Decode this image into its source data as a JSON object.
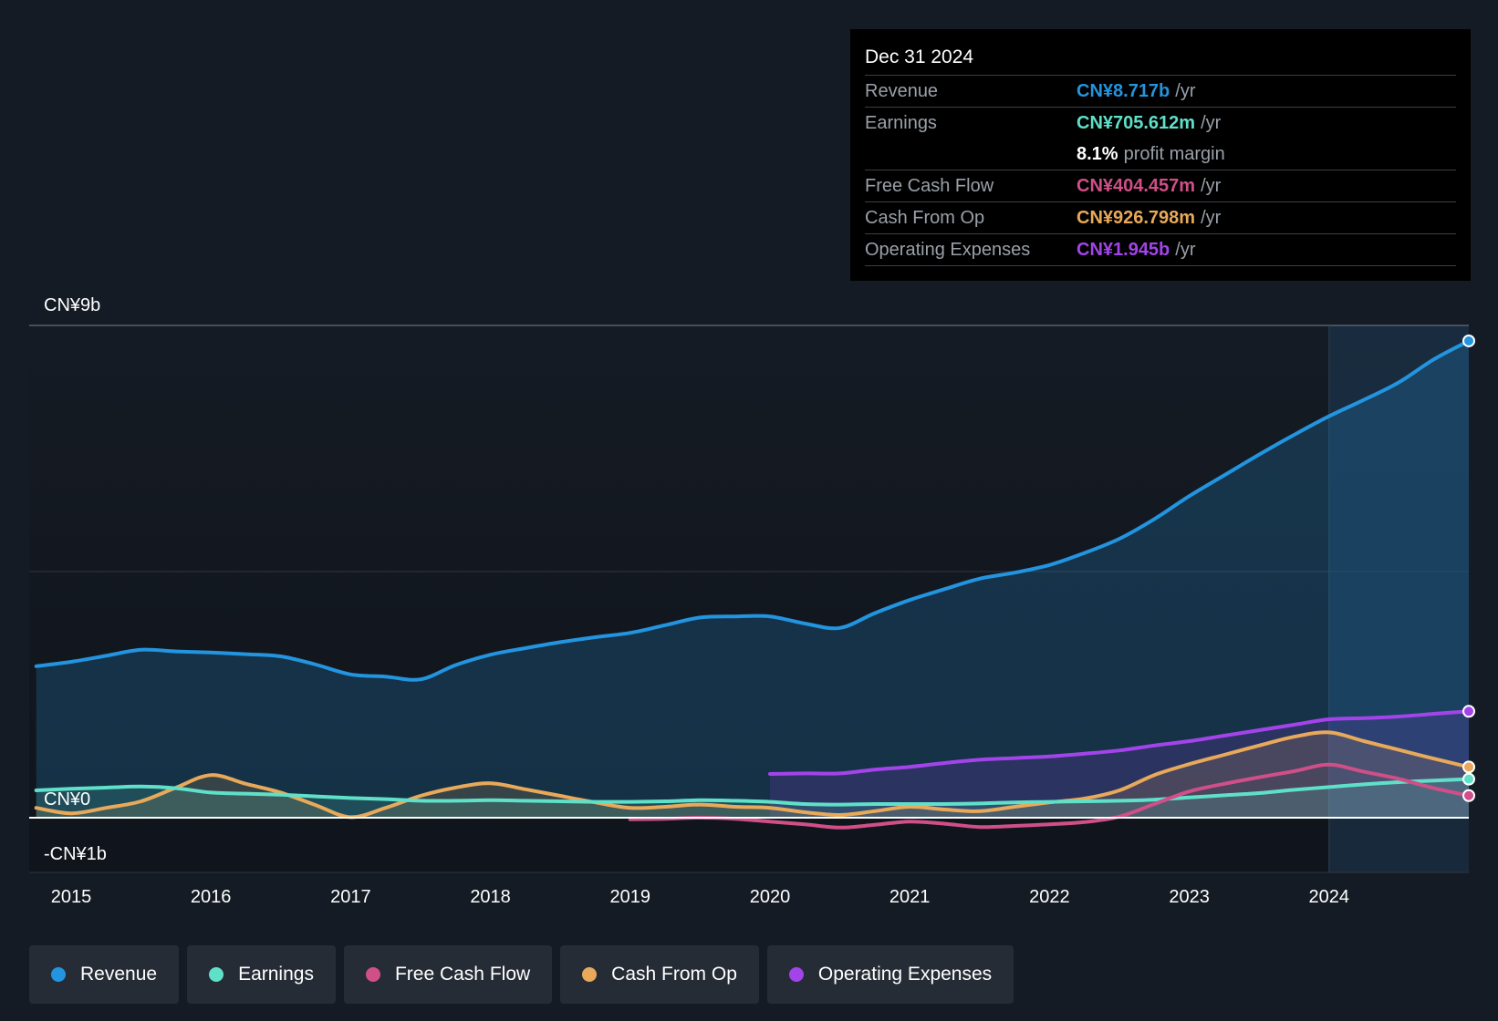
{
  "chart_data": {
    "type": "line",
    "currency_prefix": "CN¥",
    "y_labels": [
      {
        "value": 9,
        "label": "CN¥9b"
      },
      {
        "value": 0,
        "label": "CN¥0"
      },
      {
        "value": -1,
        "label": "-CN¥1b"
      }
    ],
    "ylim": [
      -1,
      9
    ],
    "xlim": [
      2014.7,
      2025.0
    ],
    "x_ticks": [
      {
        "value": 2015,
        "label": "2015"
      },
      {
        "value": 2016,
        "label": "2016"
      },
      {
        "value": 2017,
        "label": "2017"
      },
      {
        "value": 2018,
        "label": "2018"
      },
      {
        "value": 2019,
        "label": "2019"
      },
      {
        "value": 2020,
        "label": "2020"
      },
      {
        "value": 2021,
        "label": "2021"
      },
      {
        "value": 2022,
        "label": "2022"
      },
      {
        "value": 2023,
        "label": "2023"
      },
      {
        "value": 2024,
        "label": "2024"
      }
    ],
    "highlight_start": 2024.0,
    "series": [
      {
        "name": "Revenue",
        "color": "#2394df",
        "fill": true,
        "x": [
          2014.75,
          2015.0,
          2015.25,
          2015.5,
          2015.75,
          2016.0,
          2016.25,
          2016.5,
          2016.75,
          2017.0,
          2017.25,
          2017.5,
          2017.75,
          2018.0,
          2018.25,
          2018.5,
          2018.75,
          2019.0,
          2019.25,
          2019.5,
          2019.75,
          2020.0,
          2020.25,
          2020.5,
          2020.75,
          2021.0,
          2021.25,
          2021.5,
          2021.75,
          2022.0,
          2022.25,
          2022.5,
          2022.75,
          2023.0,
          2023.25,
          2023.5,
          2023.75,
          2024.0,
          2024.25,
          2024.5,
          2024.75,
          2025.0
        ],
        "values": [
          2.77,
          2.85,
          2.96,
          3.07,
          3.04,
          3.02,
          2.99,
          2.95,
          2.8,
          2.62,
          2.58,
          2.53,
          2.79,
          2.98,
          3.1,
          3.21,
          3.3,
          3.38,
          3.52,
          3.66,
          3.68,
          3.68,
          3.55,
          3.47,
          3.74,
          3.98,
          4.18,
          4.37,
          4.48,
          4.62,
          4.84,
          5.1,
          5.46,
          5.88,
          6.26,
          6.64,
          7.0,
          7.34,
          7.64,
          7.96,
          8.38,
          8.717
        ]
      },
      {
        "name": "Operating Expenses",
        "color": "#a344ea",
        "fill": true,
        "x": [
          2020.0,
          2020.25,
          2020.5,
          2020.75,
          2021.0,
          2021.25,
          2021.5,
          2021.75,
          2022.0,
          2022.25,
          2022.5,
          2022.75,
          2023.0,
          2023.25,
          2023.5,
          2023.75,
          2024.0,
          2024.25,
          2024.5,
          2024.75,
          2025.0
        ],
        "values": [
          0.8,
          0.81,
          0.81,
          0.88,
          0.93,
          1.0,
          1.06,
          1.09,
          1.12,
          1.17,
          1.23,
          1.32,
          1.4,
          1.5,
          1.6,
          1.7,
          1.8,
          1.82,
          1.85,
          1.9,
          1.945
        ]
      },
      {
        "name": "Cash From Op",
        "color": "#e8a95a",
        "fill": true,
        "x": [
          2014.75,
          2015.0,
          2015.25,
          2015.5,
          2015.75,
          2016.0,
          2016.25,
          2016.5,
          2016.75,
          2017.0,
          2017.25,
          2017.5,
          2017.75,
          2018.0,
          2018.25,
          2018.5,
          2018.75,
          2019.0,
          2019.25,
          2019.5,
          2019.75,
          2020.0,
          2020.25,
          2020.5,
          2020.75,
          2021.0,
          2021.25,
          2021.5,
          2021.75,
          2022.0,
          2022.25,
          2022.5,
          2022.75,
          2023.0,
          2023.25,
          2023.5,
          2023.75,
          2024.0,
          2024.25,
          2024.5,
          2024.75,
          2025.0
        ],
        "values": [
          0.18,
          0.08,
          0.18,
          0.3,
          0.55,
          0.78,
          0.62,
          0.46,
          0.23,
          0.01,
          0.18,
          0.4,
          0.55,
          0.63,
          0.52,
          0.4,
          0.28,
          0.18,
          0.2,
          0.24,
          0.2,
          0.18,
          0.1,
          0.05,
          0.12,
          0.2,
          0.15,
          0.12,
          0.2,
          0.28,
          0.35,
          0.5,
          0.78,
          0.98,
          1.15,
          1.32,
          1.48,
          1.56,
          1.4,
          1.24,
          1.08,
          0.927
        ]
      },
      {
        "name": "Earnings",
        "color": "#5fe0c8",
        "fill": true,
        "x": [
          2014.75,
          2015.0,
          2015.25,
          2015.5,
          2015.75,
          2016.0,
          2016.25,
          2016.5,
          2016.75,
          2017.0,
          2017.25,
          2017.5,
          2017.75,
          2018.0,
          2018.25,
          2018.5,
          2018.75,
          2019.0,
          2019.25,
          2019.5,
          2019.75,
          2020.0,
          2020.25,
          2020.5,
          2020.75,
          2021.0,
          2021.25,
          2021.5,
          2021.75,
          2022.0,
          2022.25,
          2022.5,
          2022.75,
          2023.0,
          2023.25,
          2023.5,
          2023.75,
          2024.0,
          2024.25,
          2024.5,
          2024.75,
          2025.0
        ],
        "values": [
          0.5,
          0.53,
          0.55,
          0.57,
          0.54,
          0.46,
          0.44,
          0.42,
          0.39,
          0.36,
          0.34,
          0.31,
          0.31,
          0.32,
          0.31,
          0.3,
          0.29,
          0.29,
          0.3,
          0.32,
          0.31,
          0.29,
          0.25,
          0.24,
          0.25,
          0.25,
          0.25,
          0.26,
          0.28,
          0.29,
          0.3,
          0.31,
          0.33,
          0.37,
          0.41,
          0.45,
          0.51,
          0.56,
          0.61,
          0.65,
          0.68,
          0.706
        ]
      },
      {
        "name": "Free Cash Flow",
        "color": "#d04f88",
        "fill": false,
        "x": [
          2019.0,
          2019.25,
          2019.5,
          2019.75,
          2020.0,
          2020.25,
          2020.5,
          2020.75,
          2021.0,
          2021.25,
          2021.5,
          2021.75,
          2022.0,
          2022.25,
          2022.5,
          2022.75,
          2023.0,
          2023.25,
          2023.5,
          2023.75,
          2024.0,
          2024.25,
          2024.5,
          2024.75,
          2025.0
        ],
        "values": [
          -0.03,
          -0.02,
          0.0,
          -0.02,
          -0.07,
          -0.12,
          -0.18,
          -0.13,
          -0.07,
          -0.11,
          -0.17,
          -0.15,
          -0.12,
          -0.08,
          0.02,
          0.25,
          0.48,
          0.62,
          0.74,
          0.85,
          0.97,
          0.84,
          0.71,
          0.54,
          0.404
        ]
      }
    ]
  },
  "tooltip": {
    "date": "Dec 31 2024",
    "rows": [
      {
        "label": "Revenue",
        "value": "CN¥8.717b",
        "unit": "/yr",
        "color": "#2394df"
      },
      {
        "label": "Earnings",
        "value": "CN¥705.612m",
        "unit": "/yr",
        "color": "#5fe0c8"
      },
      {
        "label": "",
        "value": "8.1%",
        "unit": "profit margin",
        "color": "#ffffff"
      },
      {
        "label": "Free Cash Flow",
        "value": "CN¥404.457m",
        "unit": "/yr",
        "color": "#d04f88"
      },
      {
        "label": "Cash From Op",
        "value": "CN¥926.798m",
        "unit": "/yr",
        "color": "#e8a95a"
      },
      {
        "label": "Operating Expenses",
        "value": "CN¥1.945b",
        "unit": "/yr",
        "color": "#a344ea"
      }
    ]
  },
  "legend": [
    {
      "label": "Revenue",
      "color": "#2394df"
    },
    {
      "label": "Earnings",
      "color": "#5fe0c8"
    },
    {
      "label": "Free Cash Flow",
      "color": "#d04f88"
    },
    {
      "label": "Cash From Op",
      "color": "#e8a95a"
    },
    {
      "label": "Operating Expenses",
      "color": "#a344ea"
    }
  ]
}
